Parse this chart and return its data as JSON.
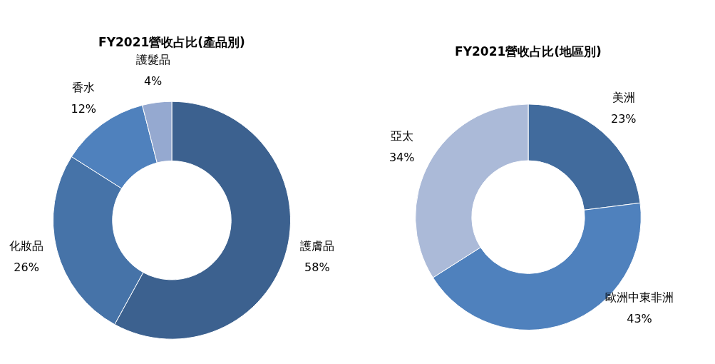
{
  "chart_data": [
    {
      "type": "donut",
      "title": "FY2021營收占比(產品別)",
      "categories": [
        "護膚品",
        "化妝品",
        "香水",
        "護髮品"
      ],
      "values": [
        58,
        26,
        12,
        4
      ],
      "value_labels": [
        "58%",
        "26%",
        "12%",
        "4%"
      ],
      "colors": [
        "#3c618f",
        "#4673a8",
        "#4f81bd",
        "#95a9d0"
      ],
      "legend": false
    },
    {
      "type": "donut",
      "title": "FY2021營收占比(地區別)",
      "categories": [
        "美洲",
        "歐洲中東非洲",
        "亞太"
      ],
      "values": [
        23,
        43,
        34
      ],
      "value_labels": [
        "23%",
        "43%",
        "34%"
      ],
      "colors": [
        "#416b9d",
        "#4f81bd",
        "#abbad8"
      ],
      "legend": false
    }
  ]
}
